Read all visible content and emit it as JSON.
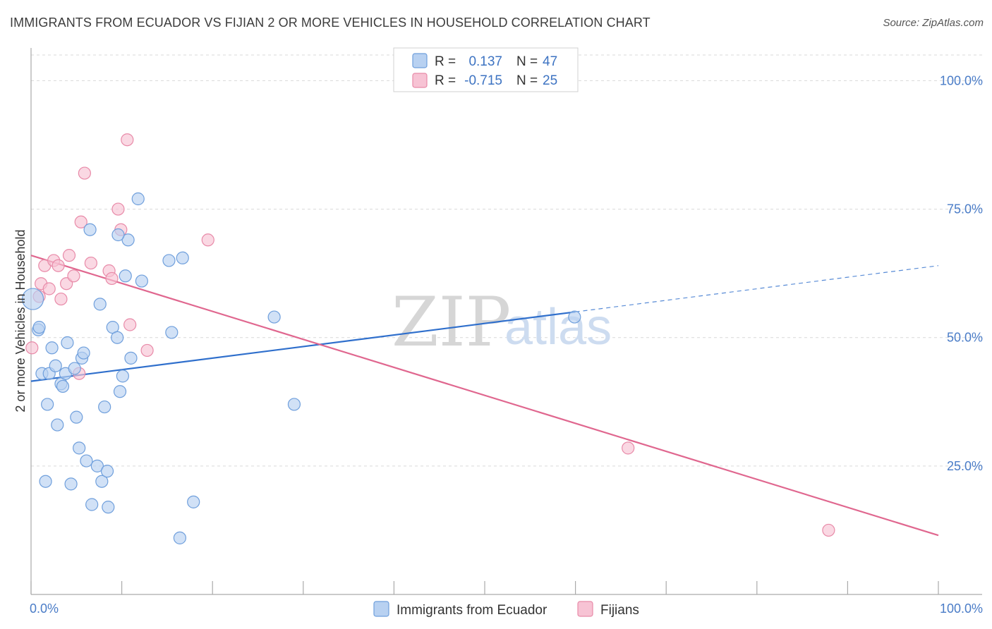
{
  "header": {
    "title": "IMMIGRANTS FROM ECUADOR VS FIJIAN 2 OR MORE VEHICLES IN HOUSEHOLD CORRELATION CHART",
    "source": "Source: ZipAtlas.com"
  },
  "watermark": {
    "zip": "ZIP",
    "atlas": "atlas"
  },
  "colors": {
    "blue_fill": "#b8d1f1",
    "blue_stroke": "#6f9fdc",
    "blue_line": "#2f6fcc",
    "pink_fill": "#f7c3d4",
    "pink_stroke": "#e88aa8",
    "pink_line": "#e0678f",
    "grid": "#d9d9d9",
    "axis": "#aaaaaa",
    "tick_text": "#4a7cc7"
  },
  "legend": {
    "rows": [
      {
        "r_label": "R =",
        "r_value": "0.137",
        "n_label": "N =",
        "n_value": "47"
      },
      {
        "r_label": "R =",
        "r_value": "-0.715",
        "n_label": "N =",
        "n_value": "25"
      }
    ]
  },
  "chart_data": {
    "type": "scatter",
    "title": "IMMIGRANTS FROM ECUADOR VS FIJIAN 2 OR MORE VEHICLES IN HOUSEHOLD CORRELATION CHART",
    "xlabel": "",
    "ylabel": "2 or more Vehicles in Household",
    "xlim": [
      0,
      100
    ],
    "ylim": [
      0,
      105
    ],
    "x_tick_labels": [
      "0.0%",
      "100.0%"
    ],
    "y_ticks": [
      25,
      50,
      75,
      100
    ],
    "y_tick_labels": [
      "25.0%",
      "50.0%",
      "75.0%",
      "100.0%"
    ],
    "grid": true,
    "legend_position": "top-center",
    "series": [
      {
        "name": "Immigrants from Ecuador",
        "color": "blue",
        "points": [
          [
            0.2,
            57.5
          ],
          [
            0.8,
            51.5
          ],
          [
            0.9,
            52
          ],
          [
            1.2,
            43
          ],
          [
            1.8,
            37
          ],
          [
            1.6,
            22
          ],
          [
            2.0,
            43
          ],
          [
            2.3,
            48
          ],
          [
            2.7,
            44.5
          ],
          [
            2.9,
            33
          ],
          [
            3.3,
            41
          ],
          [
            3.5,
            40.5
          ],
          [
            3.8,
            43
          ],
          [
            4.0,
            49
          ],
          [
            4.4,
            21.5
          ],
          [
            4.8,
            44
          ],
          [
            5.0,
            34.5
          ],
          [
            5.3,
            28.5
          ],
          [
            5.6,
            46
          ],
          [
            5.8,
            47
          ],
          [
            6.1,
            26
          ],
          [
            6.5,
            71
          ],
          [
            6.7,
            17.5
          ],
          [
            7.3,
            25
          ],
          [
            7.6,
            56.5
          ],
          [
            7.8,
            22
          ],
          [
            8.1,
            36.5
          ],
          [
            8.4,
            24
          ],
          [
            8.5,
            17
          ],
          [
            9.0,
            52
          ],
          [
            9.5,
            50
          ],
          [
            9.8,
            39.5
          ],
          [
            10.1,
            42.5
          ],
          [
            10.4,
            62
          ],
          [
            10.7,
            69
          ],
          [
            9.6,
            70
          ],
          [
            11.0,
            46
          ],
          [
            11.8,
            77
          ],
          [
            12.2,
            61
          ],
          [
            15.2,
            65
          ],
          [
            15.5,
            51
          ],
          [
            16.4,
            11
          ],
          [
            16.7,
            65.5
          ],
          [
            17.9,
            18
          ],
          [
            26.8,
            54
          ],
          [
            29.0,
            37
          ],
          [
            59.9,
            54
          ]
        ]
      },
      {
        "name": "Fijians",
        "color": "pink",
        "points": [
          [
            0.1,
            48
          ],
          [
            0.9,
            58
          ],
          [
            1.1,
            60.5
          ],
          [
            1.5,
            64
          ],
          [
            2.0,
            59.5
          ],
          [
            2.5,
            65
          ],
          [
            3.0,
            64
          ],
          [
            3.3,
            57.5
          ],
          [
            3.9,
            60.5
          ],
          [
            4.2,
            66
          ],
          [
            4.7,
            62
          ],
          [
            5.3,
            43
          ],
          [
            5.5,
            72.5
          ],
          [
            5.9,
            82
          ],
          [
            6.6,
            64.5
          ],
          [
            8.6,
            63
          ],
          [
            8.9,
            61.5
          ],
          [
            9.6,
            75
          ],
          [
            9.9,
            71
          ],
          [
            10.6,
            88.5
          ],
          [
            10.9,
            52.5
          ],
          [
            12.8,
            47.5
          ],
          [
            19.5,
            69
          ],
          [
            65.8,
            28.5
          ],
          [
            87.9,
            12.5
          ]
        ]
      }
    ],
    "trendlines": [
      {
        "series": "Immigrants from Ecuador",
        "solid": [
          [
            0,
            41.5
          ],
          [
            60,
            55
          ]
        ],
        "dashed": [
          [
            60,
            55
          ],
          [
            100,
            64
          ]
        ]
      },
      {
        "series": "Fijians",
        "solid": [
          [
            0,
            66
          ],
          [
            100,
            11.5
          ]
        ]
      }
    ]
  },
  "bottom_legend": [
    {
      "label": "Immigrants from Ecuador"
    },
    {
      "label": "Fijians"
    }
  ]
}
